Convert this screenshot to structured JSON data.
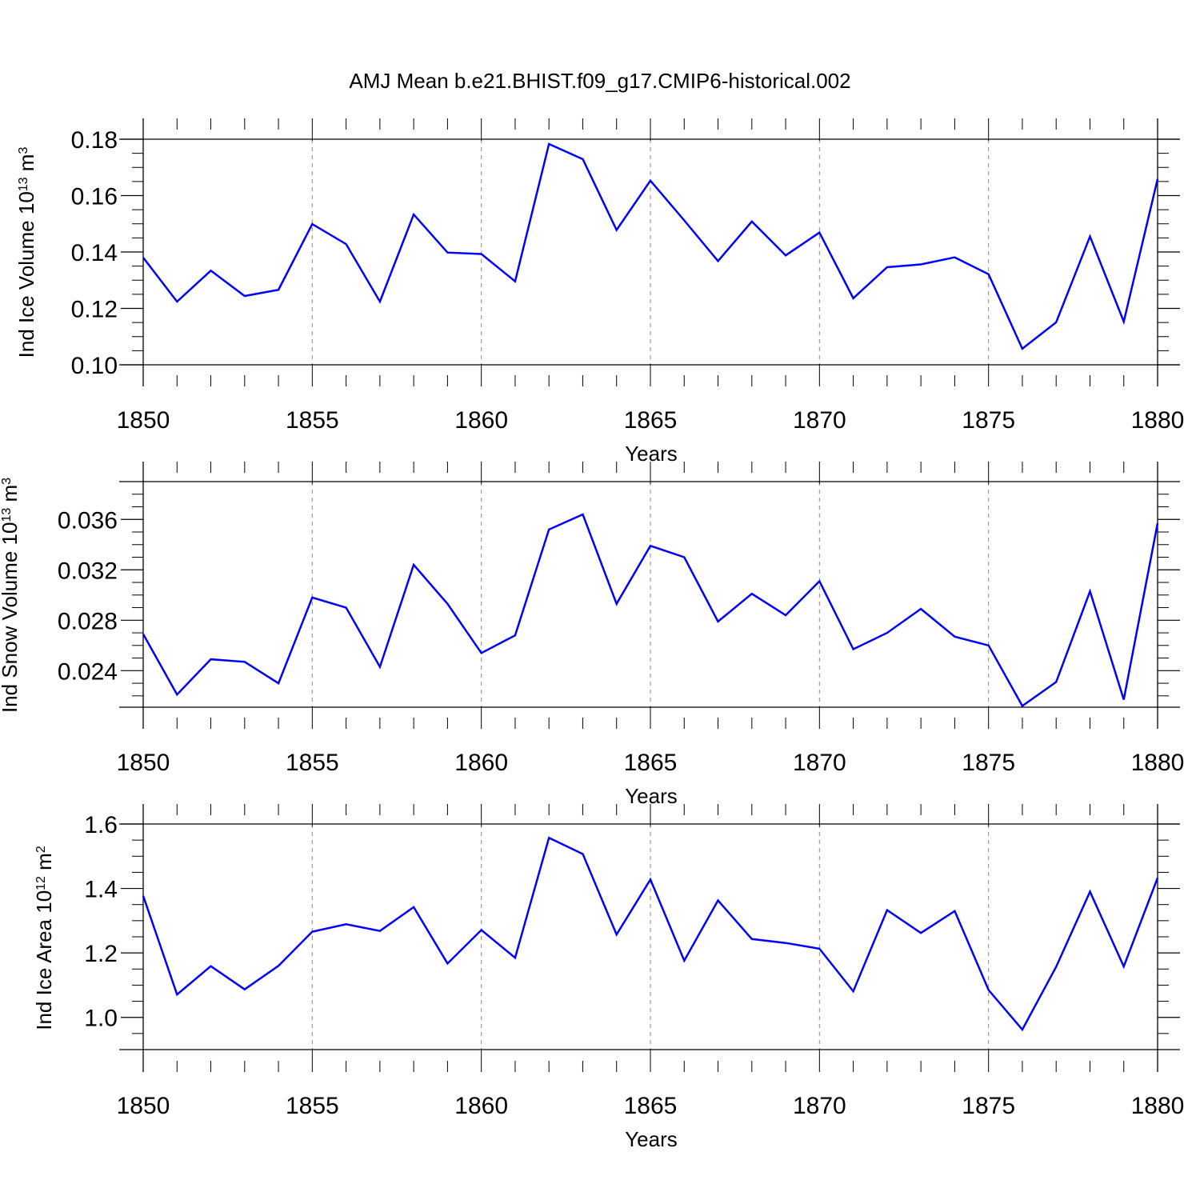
{
  "title": "AMJ Mean b.e21.BHIST.f09_g17.CMIP6-historical.002",
  "colors": {
    "series": "#0000ff",
    "axis": "#000000",
    "grid": "#888888"
  },
  "chart_data": [
    {
      "type": "line",
      "xlabel": "Years",
      "ylabel": {
        "prefix": "Ind Ice Volume 10",
        "exp1": "13",
        "middle": " m",
        "exp2": "3"
      },
      "x": [
        1850,
        1851,
        1852,
        1853,
        1854,
        1855,
        1856,
        1857,
        1858,
        1859,
        1860,
        1861,
        1862,
        1863,
        1864,
        1865,
        1866,
        1867,
        1868,
        1869,
        1870,
        1871,
        1872,
        1873,
        1874,
        1875,
        1876,
        1877,
        1878,
        1879,
        1880
      ],
      "values": [
        0.138,
        0.1224,
        0.1334,
        0.1244,
        0.1266,
        0.1499,
        0.1428,
        0.1224,
        0.1533,
        0.1398,
        0.1393,
        0.1296,
        0.1783,
        0.1729,
        0.1478,
        0.1653,
        0.1512,
        0.1368,
        0.1508,
        0.1388,
        0.1469,
        0.1236,
        0.1346,
        0.1356,
        0.1381,
        0.1321,
        0.1057,
        0.1151,
        0.1455,
        0.1153,
        0.1659
      ],
      "xlim": [
        1850,
        1880
      ],
      "ylim": [
        0.1,
        0.18
      ],
      "xticks": [
        "1850",
        "1855",
        "1860",
        "1865",
        "1870",
        "1875",
        "1880"
      ],
      "yticks": [
        "0.10",
        "0.12",
        "0.14",
        "0.16",
        "0.18"
      ]
    },
    {
      "type": "line",
      "xlabel": "Years",
      "ylabel": {
        "prefix": "Ind Snow Volume 10",
        "exp1": "13",
        "middle": " m",
        "exp2": "3"
      },
      "x": [
        1850,
        1851,
        1852,
        1853,
        1854,
        1855,
        1856,
        1857,
        1858,
        1859,
        1860,
        1861,
        1862,
        1863,
        1864,
        1865,
        1866,
        1867,
        1868,
        1869,
        1870,
        1871,
        1872,
        1873,
        1874,
        1875,
        1876,
        1877,
        1878,
        1879,
        1880
      ],
      "values": [
        0.0269,
        0.0221,
        0.0249,
        0.0247,
        0.023,
        0.0298,
        0.029,
        0.0243,
        0.0324,
        0.0293,
        0.0254,
        0.0268,
        0.0352,
        0.0364,
        0.0293,
        0.0339,
        0.033,
        0.0279,
        0.0301,
        0.0284,
        0.0311,
        0.0257,
        0.027,
        0.0289,
        0.0267,
        0.026,
        0.0212,
        0.0231,
        0.0303,
        0.0217,
        0.0357
      ],
      "xlim": [
        1850,
        1880
      ],
      "ylim": [
        0.0211,
        0.039
      ],
      "xticks": [
        "1850",
        "1855",
        "1860",
        "1865",
        "1870",
        "1875",
        "1880"
      ],
      "yticks": [
        "0.024",
        "0.028",
        "0.032",
        "0.036"
      ]
    },
    {
      "type": "line",
      "xlabel": "Years",
      "ylabel": {
        "prefix": "Ind Ice Area 10",
        "exp1": "12",
        "middle": " m",
        "exp2": "2"
      },
      "x": [
        1850,
        1851,
        1852,
        1853,
        1854,
        1855,
        1856,
        1857,
        1858,
        1859,
        1860,
        1861,
        1862,
        1863,
        1864,
        1865,
        1866,
        1867,
        1868,
        1869,
        1870,
        1871,
        1872,
        1873,
        1874,
        1875,
        1876,
        1877,
        1878,
        1879,
        1880
      ],
      "values": [
        1.377,
        1.071,
        1.159,
        1.087,
        1.16,
        1.266,
        1.289,
        1.268,
        1.342,
        1.167,
        1.271,
        1.185,
        1.557,
        1.507,
        1.257,
        1.428,
        1.176,
        1.363,
        1.243,
        1.231,
        1.213,
        1.081,
        1.333,
        1.262,
        1.33,
        1.085,
        0.962,
        1.157,
        1.39,
        1.158,
        1.433
      ],
      "xlim": [
        1850,
        1880
      ],
      "ylim": [
        0.9,
        1.6
      ],
      "xticks": [
        "1850",
        "1855",
        "1860",
        "1865",
        "1870",
        "1875",
        "1880"
      ],
      "yticks": [
        "1.0",
        "1.2",
        "1.4",
        "1.6"
      ]
    }
  ]
}
